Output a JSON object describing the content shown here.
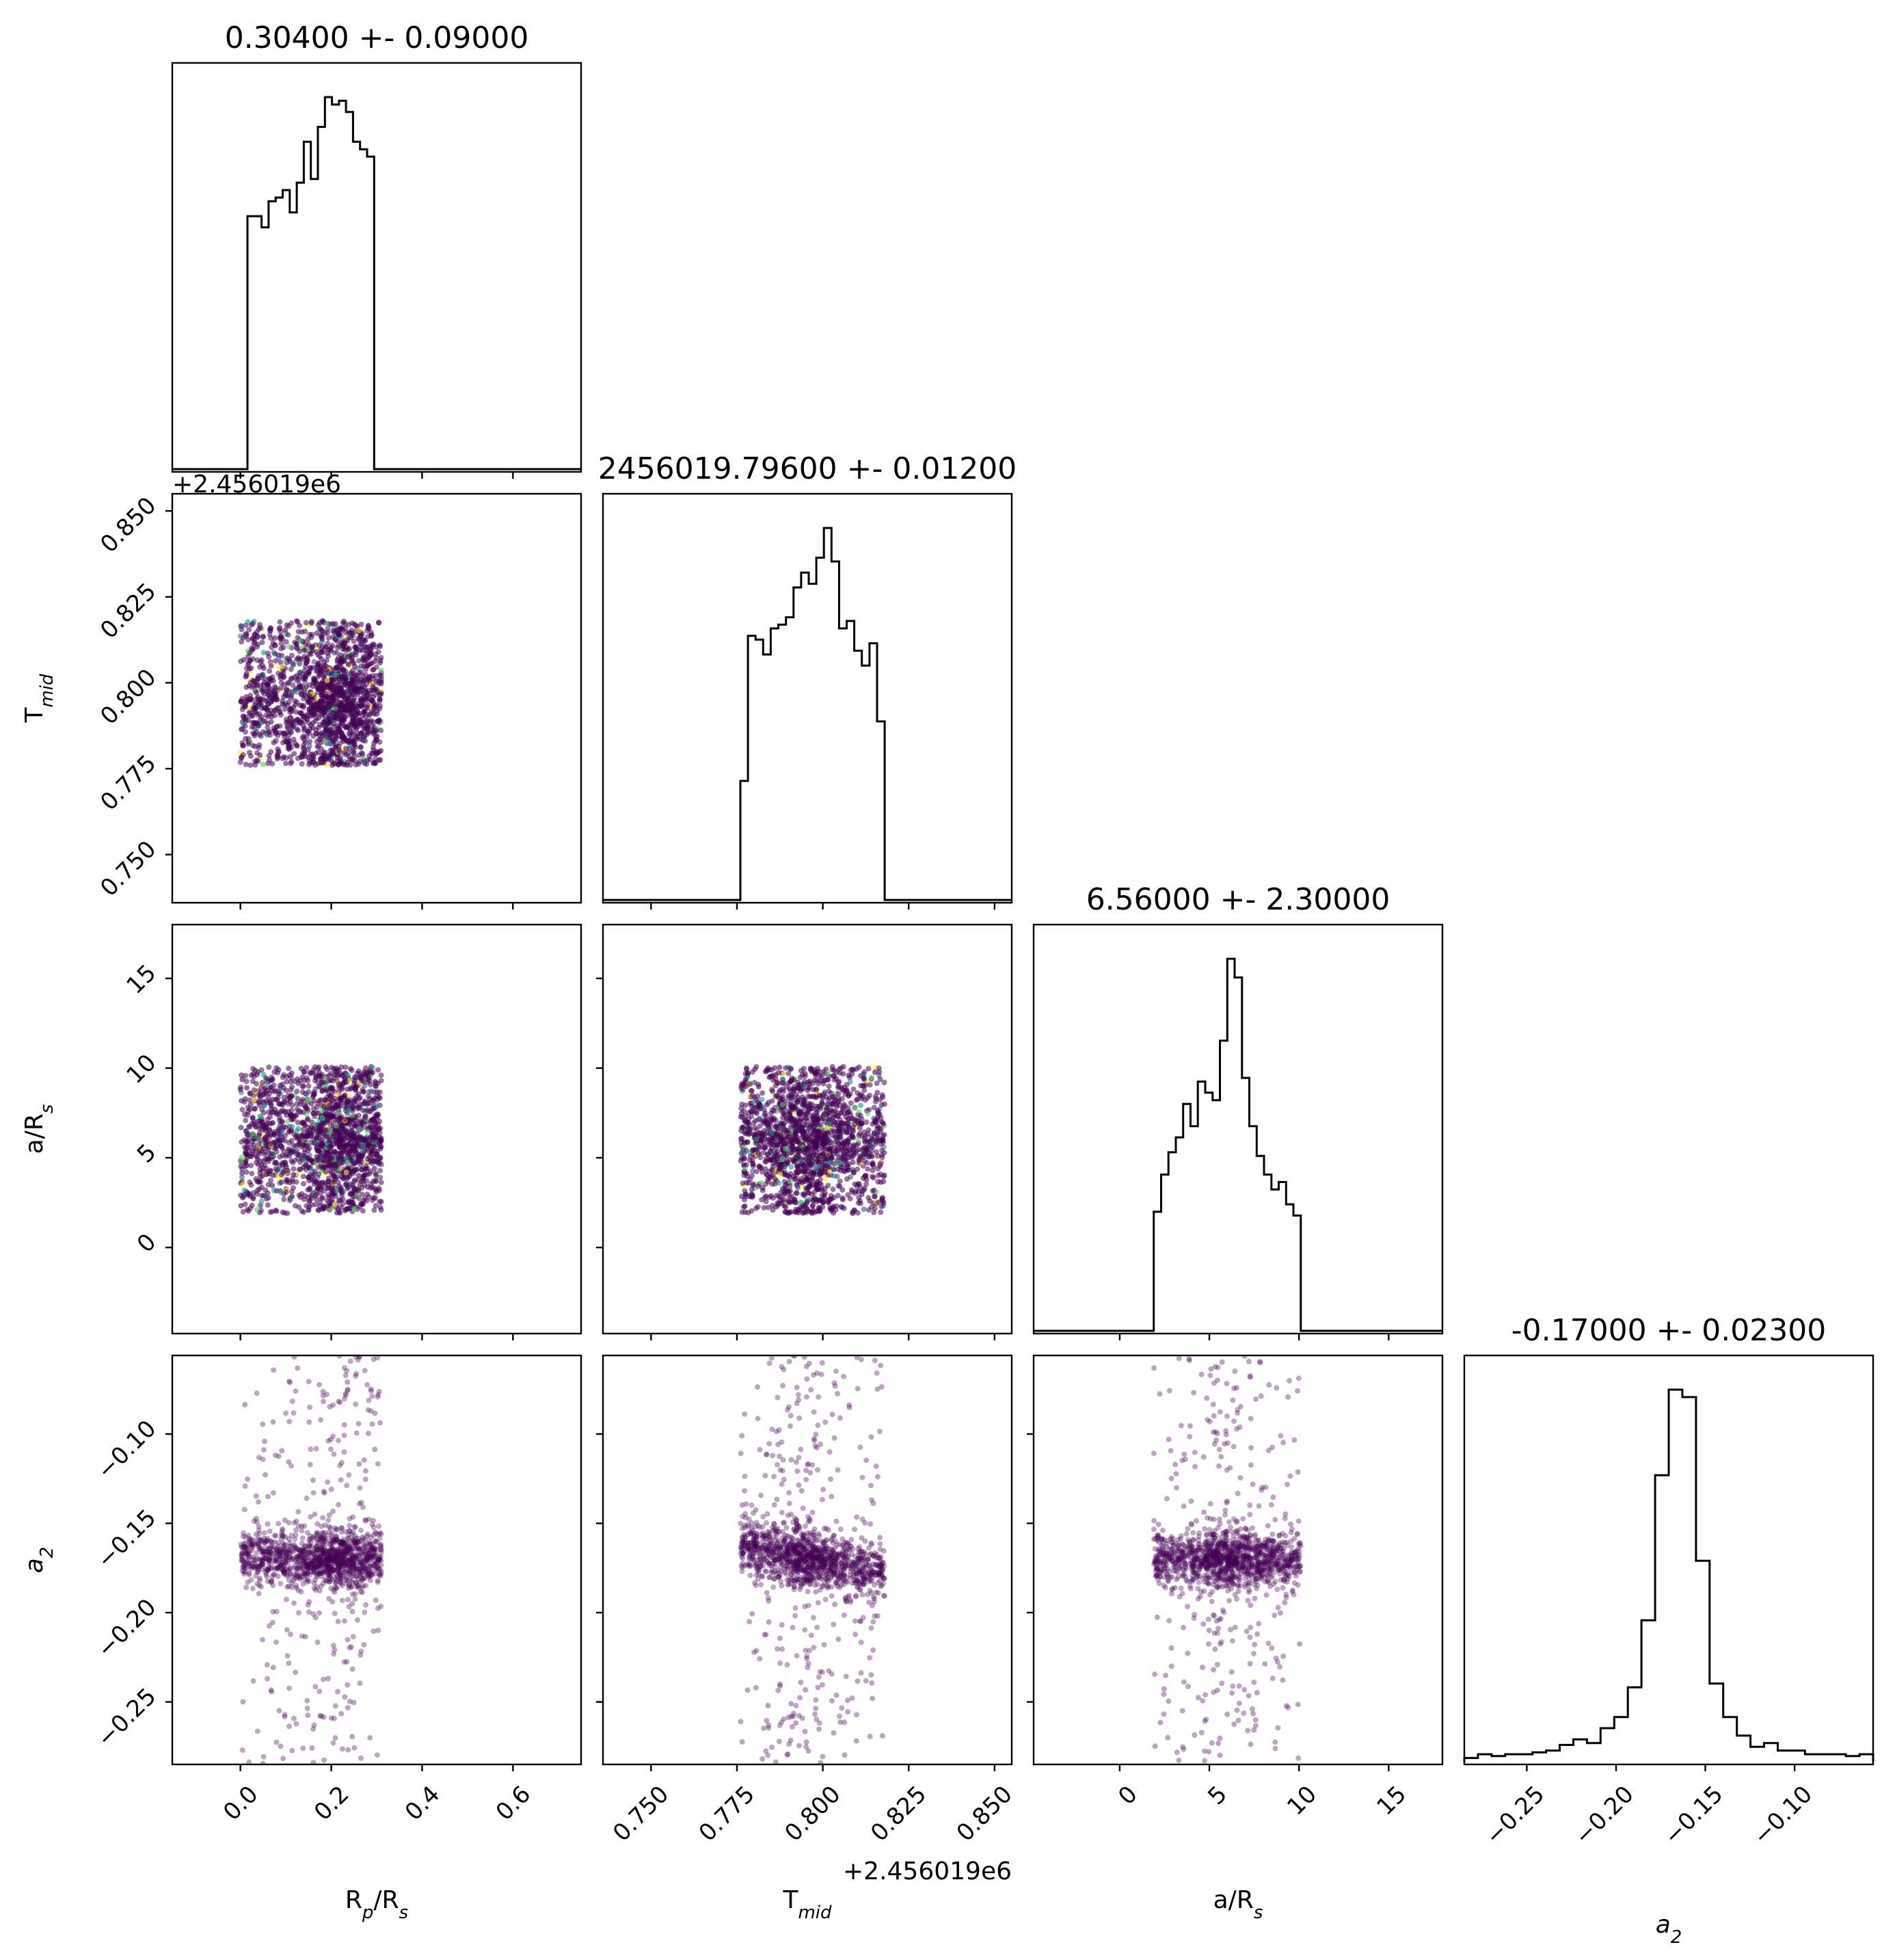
{
  "chart_data": {
    "type": "scatter",
    "subtype": "corner-plot",
    "parameters": [
      {
        "key": "rp",
        "label": "R_p/R_s",
        "title": "0.30400 +- 0.09000",
        "range": [
          -0.15,
          0.75
        ],
        "ticks": [
          0.0,
          0.2,
          0.4,
          0.6
        ],
        "tick_labels": [
          "0.0",
          "0.2",
          "0.4",
          "0.6"
        ],
        "support": [
          0.0,
          0.31
        ],
        "mean": 0.304,
        "sigma": 0.09
      },
      {
        "key": "tmid",
        "label": "T_mid",
        "title": "2456019.79600 +- 0.01200",
        "offset_text": "+2.456019e6",
        "range": [
          0.736,
          0.855
        ],
        "ticks": [
          0.75,
          0.775,
          0.8,
          0.825,
          0.85
        ],
        "tick_labels": [
          "0.750",
          "0.775",
          "0.800",
          "0.825",
          "0.850"
        ],
        "support": [
          0.776,
          0.818
        ],
        "mean": 0.796,
        "sigma": 0.012
      },
      {
        "key": "ars",
        "label": "a/R_s",
        "title": "6.56000 +- 2.30000",
        "range": [
          -4.8,
          18.0
        ],
        "ticks": [
          0,
          5,
          10,
          15
        ],
        "tick_labels": [
          "0",
          "5",
          "10",
          "15"
        ],
        "support": [
          1.9,
          10.1
        ],
        "mean": 6.56,
        "sigma": 2.3
      },
      {
        "key": "a2",
        "label": "a_2",
        "title": "-0.17000 +- 0.02300",
        "range": [
          -0.285,
          -0.056
        ],
        "ticks": [
          -0.25,
          -0.2,
          -0.15,
          -0.1
        ],
        "tick_labels": [
          "−0.25",
          "−0.20",
          "−0.15",
          "−0.10"
        ],
        "support": [
          -0.285,
          -0.056
        ],
        "mean": -0.17,
        "sigma": 0.023
      }
    ],
    "histograms": {
      "rp": [
        0,
        0.68,
        0.68,
        0.65,
        0.72,
        0.73,
        0.75,
        0.69,
        0.77,
        0.88,
        0.78,
        0.92,
        1.0,
        0.98,
        0.99,
        0.96,
        0.88,
        0.86,
        0.84,
        0.0
      ],
      "tmid": [
        0.32,
        0.71,
        0.7,
        0.66,
        0.73,
        0.74,
        0.76,
        0.84,
        0.88,
        0.85,
        0.92,
        1.0,
        0.91,
        0.73,
        0.75,
        0.67,
        0.63,
        0.69,
        0.48
      ],
      "ars": [
        0.32,
        0.42,
        0.48,
        0.52,
        0.61,
        0.55,
        0.67,
        0.64,
        0.62,
        0.78,
        1.0,
        0.95,
        0.68,
        0.55,
        0.47,
        0.42,
        0.38,
        0.4,
        0.34,
        0.31
      ],
      "a2": [
        0.01,
        0.02,
        0.015,
        0.02,
        0.02,
        0.025,
        0.03,
        0.045,
        0.06,
        0.05,
        0.09,
        0.12,
        0.2,
        0.38,
        0.77,
        1.0,
        0.98,
        0.54,
        0.21,
        0.12,
        0.07,
        0.04,
        0.05,
        0.03,
        0.03,
        0.02,
        0.02,
        0.02,
        0.015,
        0.02
      ]
    },
    "scatter_shape": {
      "rp_tmid": "uniform block",
      "rp_ars": "uniform block, denser near (0.2, 6)",
      "tmid_ars": "uniform block, denser near (0.795, 6)",
      "rp_a2": "band at -0.17, sparse tails",
      "tmid_a2": "band slightly tilted from -0.162 to -0.178",
      "ars_a2": "band at -0.17, sparse tails"
    },
    "colors": {
      "hist_line": "#000000",
      "scatter_dark": "#440154",
      "scatter_mix": [
        "#440154",
        "#3b528b",
        "#21918c",
        "#5ec962",
        "#fde725"
      ],
      "frame": "#000000"
    },
    "grid": false,
    "legend": "none"
  }
}
